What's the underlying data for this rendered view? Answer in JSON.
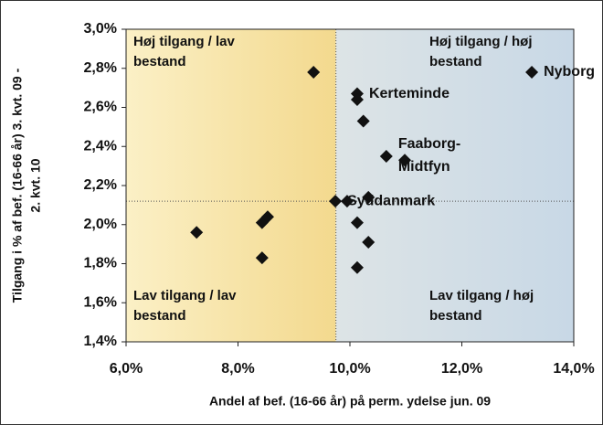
{
  "chart_data": {
    "type": "scatter",
    "xlabel": "Andel af bef. (16-66 år) på perm. ydelse jun. 09",
    "ylabel": [
      "Tilgang i % af bef. (16-66 år) 3. kvt. 09 -",
      "2. kvt. 10"
    ],
    "xlim": [
      6.0,
      14.0
    ],
    "ylim": [
      1.4,
      3.0
    ],
    "xticks": [
      {
        "value": 6,
        "label": "6,0%"
      },
      {
        "value": 8,
        "label": "8,0%"
      },
      {
        "value": 10,
        "label": "10,0%"
      },
      {
        "value": 12,
        "label": "12,0%"
      },
      {
        "value": 14,
        "label": "14,0%"
      }
    ],
    "yticks": [
      {
        "value": 1.4,
        "label": "1,4%"
      },
      {
        "value": 1.6,
        "label": "1,6%"
      },
      {
        "value": 1.8,
        "label": "1,8%"
      },
      {
        "value": 2.0,
        "label": "2,0%"
      },
      {
        "value": 2.2,
        "label": "2,2%"
      },
      {
        "value": 2.4,
        "label": "2,4%"
      },
      {
        "value": 2.6,
        "label": "2,6%"
      },
      {
        "value": 2.8,
        "label": "2,8%"
      },
      {
        "value": 3.0,
        "label": "3,0%"
      }
    ],
    "reference_x": 9.75,
    "reference_y": 2.12,
    "color": "#111111",
    "x": [
      9.35,
      7.26,
      8.43,
      8.53,
      8.43,
      10.13,
      10.13,
      10.24,
      10.65,
      10.98,
      9.74,
      9.95,
      10.33,
      10.13,
      10.33,
      10.13,
      13.25
    ],
    "values": [
      2.78,
      1.96,
      2.01,
      2.04,
      1.83,
      2.67,
      2.64,
      2.53,
      2.35,
      2.33,
      2.12,
      2.12,
      2.14,
      2.01,
      1.91,
      1.78,
      2.78
    ],
    "labels": [
      null,
      null,
      null,
      null,
      null,
      [
        "Kerteminde"
      ],
      null,
      null,
      [
        "Faaborg-",
        "Midtfyn"
      ],
      null,
      [
        "Syddanmark"
      ],
      null,
      null,
      null,
      null,
      null,
      [
        "Nyborg"
      ]
    ],
    "quadrants": {
      "top_left": [
        "Høj tilgang / lav",
        "bestand"
      ],
      "top_right": [
        "Høj tilgang / høj",
        "bestand"
      ],
      "bottom_left": [
        "Lav tilgang / lav",
        "bestand"
      ],
      "bottom_right": [
        "Lav tilgang / høj",
        "bestand"
      ]
    }
  }
}
